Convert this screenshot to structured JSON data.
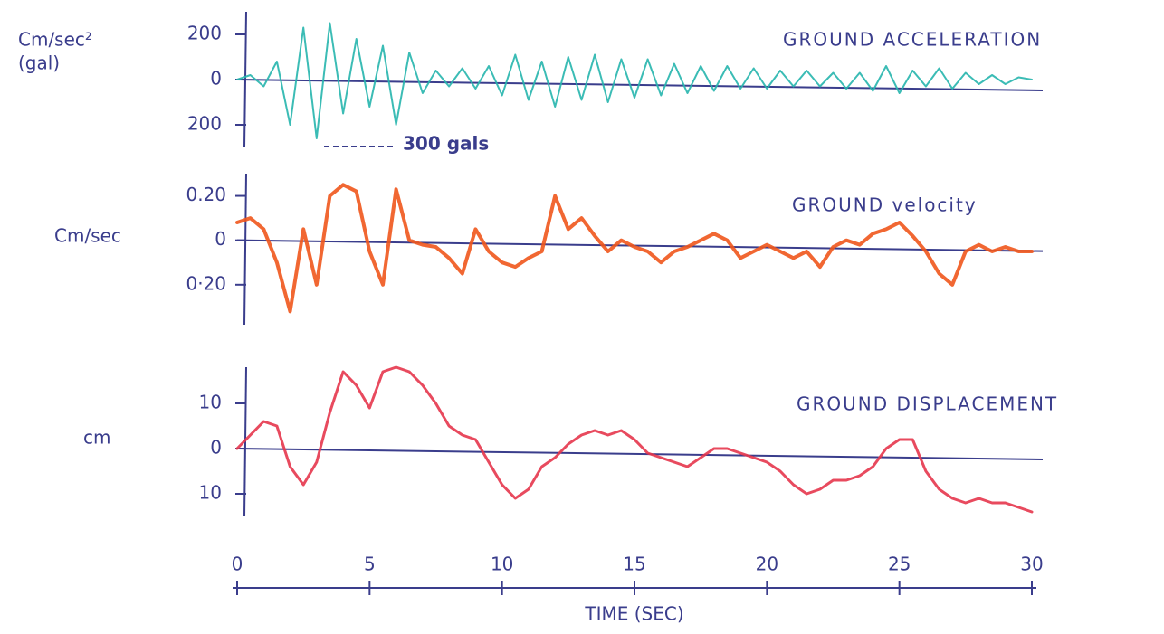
{
  "chart_data": [
    {
      "type": "line",
      "title": "GROUND ACCELERATION",
      "ylabel": [
        "Cm/sec²",
        "(gal)"
      ],
      "annotation": "300 gals",
      "color": "#26b5ad",
      "xlim": [
        0,
        30
      ],
      "ylim": [
        -300,
        300
      ],
      "yticks": [
        {
          "value": 200,
          "label": "200"
        },
        0,
        {
          "value": -200,
          "label": "200"
        }
      ],
      "x": [
        0,
        0.5,
        1,
        1.5,
        2,
        2.5,
        3,
        3.5,
        4,
        4.5,
        5,
        5.5,
        6,
        6.5,
        7,
        7.5,
        8,
        8.5,
        9,
        9.5,
        10,
        10.5,
        11,
        11.5,
        12,
        12.5,
        13,
        13.5,
        14,
        14.5,
        15,
        15.5,
        16,
        16.5,
        17,
        17.5,
        18,
        18.5,
        19,
        19.5,
        20,
        20.5,
        21,
        21.5,
        22,
        22.5,
        23,
        23.5,
        24,
        24.5,
        25,
        25.5,
        26,
        26.5,
        27,
        27.5,
        28,
        28.5,
        29,
        29.5,
        30
      ],
      "values": [
        0,
        20,
        -30,
        80,
        -200,
        230,
        -260,
        250,
        -150,
        180,
        -120,
        150,
        -200,
        120,
        -60,
        40,
        -30,
        50,
        -40,
        60,
        -70,
        110,
        -90,
        80,
        -120,
        100,
        -90,
        110,
        -100,
        90,
        -80,
        90,
        -70,
        70,
        -60,
        60,
        -50,
        60,
        -40,
        50,
        -40,
        40,
        -30,
        40,
        -30,
        30,
        -40,
        30,
        -50,
        60,
        -60,
        40,
        -30,
        50,
        -40,
        30,
        -20,
        20,
        -20,
        10,
        0
      ]
    },
    {
      "type": "line",
      "title": "GROUND velocity",
      "ylabel": [
        "Cm/sec"
      ],
      "color": "#f0561c",
      "xlim": [
        0,
        30
      ],
      "ylim": [
        -0.38,
        0.3
      ],
      "yticks": [
        {
          "value": 0.2,
          "label": "0.20"
        },
        0,
        {
          "value": -0.2,
          "label": "0·20"
        }
      ],
      "x": [
        0,
        0.5,
        1,
        1.5,
        2,
        2.5,
        3,
        3.5,
        4,
        4.5,
        5,
        5.5,
        6,
        6.5,
        7,
        7.5,
        8,
        8.5,
        9,
        9.5,
        10,
        10.5,
        11,
        11.5,
        12,
        12.5,
        13,
        13.5,
        14,
        14.5,
        15,
        15.5,
        16,
        16.5,
        17,
        17.5,
        18,
        18.5,
        19,
        19.5,
        20,
        20.5,
        21,
        21.5,
        22,
        22.5,
        23,
        23.5,
        24,
        24.5,
        25,
        25.5,
        26,
        26.5,
        27,
        27.5,
        28,
        28.5,
        29,
        29.5,
        30
      ],
      "values": [
        0.08,
        0.1,
        0.05,
        -0.1,
        -0.32,
        0.05,
        -0.2,
        0.2,
        0.25,
        0.22,
        -0.05,
        -0.2,
        0.23,
        0,
        -0.02,
        -0.03,
        -0.08,
        -0.15,
        0.05,
        -0.05,
        -0.1,
        -0.12,
        -0.08,
        -0.05,
        0.2,
        0.05,
        0.1,
        0.02,
        -0.05,
        0,
        -0.03,
        -0.05,
        -0.1,
        -0.05,
        -0.03,
        0,
        0.03,
        0,
        -0.08,
        -0.05,
        -0.02,
        -0.05,
        -0.08,
        -0.05,
        -0.12,
        -0.03,
        0,
        -0.02,
        0.03,
        0.05,
        0.08,
        0.02,
        -0.05,
        -0.15,
        -0.2,
        -0.05,
        -0.02,
        -0.05,
        -0.03,
        -0.05,
        -0.05
      ]
    },
    {
      "type": "line",
      "title": "GROUND DISPLACEMENT",
      "ylabel": [
        "cm"
      ],
      "xlabel": "TIME (SEC)",
      "color": "#e5364c",
      "xlim": [
        0,
        30
      ],
      "ylim": [
        -15,
        18
      ],
      "xticks": [
        0,
        5,
        10,
        15,
        20,
        25,
        30
      ],
      "yticks": [
        10,
        0,
        {
          "value": -10,
          "label": "10"
        }
      ],
      "x": [
        0,
        0.5,
        1,
        1.5,
        2,
        2.5,
        3,
        3.5,
        4,
        4.5,
        5,
        5.5,
        6,
        6.5,
        7,
        7.5,
        8,
        8.5,
        9,
        9.5,
        10,
        10.5,
        11,
        11.5,
        12,
        12.5,
        13,
        13.5,
        14,
        14.5,
        15,
        15.5,
        16,
        16.5,
        17,
        17.5,
        18,
        18.5,
        19,
        19.5,
        20,
        20.5,
        21,
        21.5,
        22,
        22.5,
        23,
        23.5,
        24,
        24.5,
        25,
        25.5,
        26,
        26.5,
        27,
        27.5,
        28,
        28.5,
        29,
        29.5,
        30
      ],
      "values": [
        0,
        3,
        6,
        5,
        -4,
        -8,
        -3,
        8,
        17,
        14,
        9,
        17,
        18,
        17,
        14,
        10,
        5,
        3,
        2,
        -3,
        -8,
        -11,
        -9,
        -4,
        -2,
        1,
        3,
        4,
        3,
        4,
        2,
        -1,
        -2,
        -3,
        -4,
        -2,
        0,
        0,
        -1,
        -2,
        -3,
        -5,
        -8,
        -10,
        -9,
        -7,
        -7,
        -6,
        -4,
        0,
        2,
        2,
        -5,
        -9,
        -11,
        -12,
        -11,
        -12,
        -12,
        -13,
        -14
      ]
    }
  ]
}
